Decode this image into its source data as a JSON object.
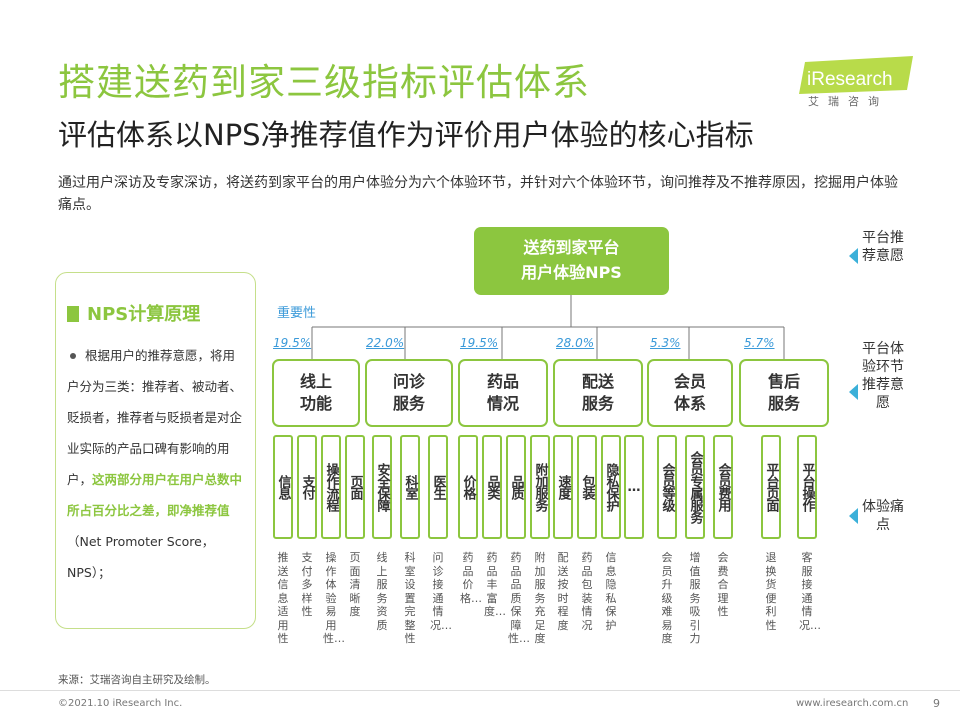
{
  "title": "搭建送药到家三级指标评估体系",
  "subtitle": "评估体系以NPS净推荐值作为评价用户体验的核心指标",
  "intro": "通过用户深访及专家深访，将送药到家平台的用户体验分为六个体验环节，并针对六个体验环节，询问推荐及不推荐原因，挖掘用户体验痛点。",
  "logo": {
    "text": "iResearch",
    "cn": "艾瑞咨询"
  },
  "nps_panel": {
    "heading": "NPS计算原理",
    "text_normal": "根据用户的推荐意愿，将用户分为三类：推荐者、被动者、贬损者，推荐者与贬损者是对企业实际的产品口碑有影响的用户，",
    "text_highlight": "这两部分用户在用户总数中所占百分比之差，即净推荐值",
    "text_tail": "（Net Promoter Score，NPS）；"
  },
  "diagram": {
    "top_line1": "送药到家平台",
    "top_line2": "用户体验NPS",
    "weight_label": "重要性",
    "categories": [
      {
        "l1": "线上",
        "l2": "功能",
        "weight": "19.5%"
      },
      {
        "l1": "问诊",
        "l2": "服务",
        "weight": "22.0%"
      },
      {
        "l1": "药品",
        "l2": "情况",
        "weight": "19.5%"
      },
      {
        "l1": "配送",
        "l2": "服务",
        "weight": "28.0%"
      },
      {
        "l1": "会员",
        "l2": "体系",
        "weight": "5.3%"
      },
      {
        "l1": "售后",
        "l2": "服务",
        "weight": "5.7%"
      }
    ],
    "indicators": [
      {
        "name": "信息",
        "desc": "推送信息适用性"
      },
      {
        "name": "支付",
        "desc": "支付多样性"
      },
      {
        "name": "操作流程",
        "desc": "操作体验易用性…"
      },
      {
        "name": "页面",
        "desc": "页面清晰度"
      },
      {
        "name": "安全保障",
        "desc": "线上服务资质"
      },
      {
        "name": "科室",
        "desc": "科室设置完整性"
      },
      {
        "name": "医生",
        "desc": "问诊接通情况…"
      },
      {
        "name": "价格",
        "desc": "药品价格…"
      },
      {
        "name": "品类",
        "desc": "药品丰富度…"
      },
      {
        "name": "品质",
        "desc": "药品品质保障性…"
      },
      {
        "name": "附加服务",
        "desc": "附加服务充足度"
      },
      {
        "name": "速度",
        "desc": "配送按时程度"
      },
      {
        "name": "包装",
        "desc": "药品包装情况"
      },
      {
        "name": "隐私保护",
        "desc": "信息隐私保护"
      },
      {
        "name": "…",
        "desc": ""
      },
      {
        "name": "会员等级",
        "desc": "会员升级难易度"
      },
      {
        "name": "会员专属服务",
        "desc": "增值服务吸引力"
      },
      {
        "name": "会员费用",
        "desc": "会费合理性"
      },
      {
        "name": "平台页面",
        "desc": "退换货便利性"
      },
      {
        "name": "平台操作",
        "desc": "客服接通情况…"
      }
    ]
  },
  "levels": [
    {
      "text": "平台推荐意愿"
    },
    {
      "text": "平台体验环节推荐意愿"
    },
    {
      "text": "体验痛点"
    }
  ],
  "source": "来源：艾瑞咨询自主研究及绘制。",
  "copyright": "©2021.10 iResearch Inc.",
  "website": "www.iresearch.com.cn",
  "page_number": "9",
  "colors": {
    "green": "#8cc63f",
    "blue": "#3b9ad9",
    "arrow": "#3bb0d9"
  }
}
